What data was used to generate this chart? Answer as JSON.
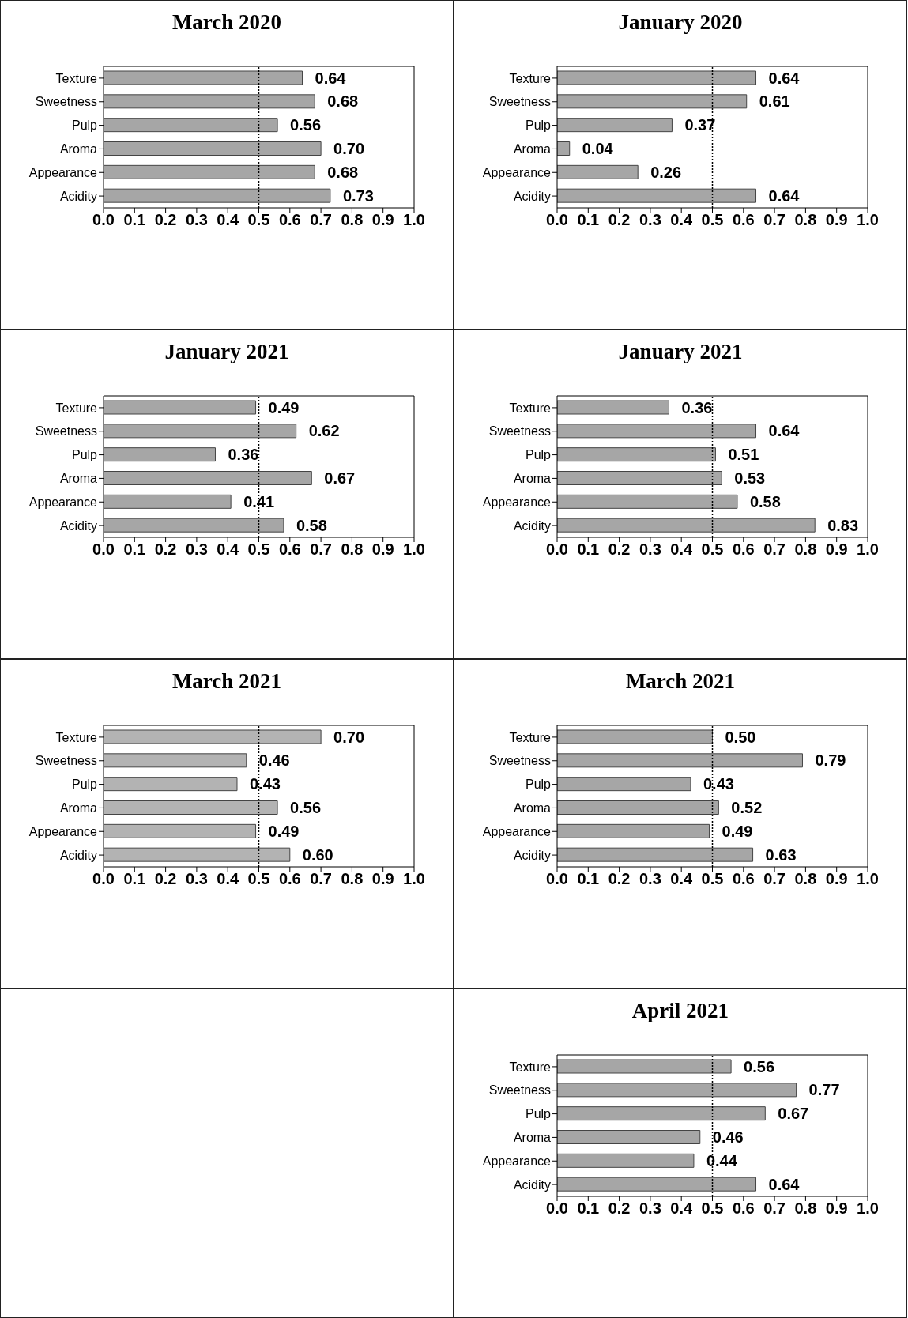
{
  "chart_data": [
    {
      "type": "bar",
      "orientation": "horizontal",
      "title": "March 2020",
      "categories": [
        "Texture",
        "Sweetness",
        "Pulp",
        "Aroma",
        "Appearance",
        "Acidity"
      ],
      "values": [
        0.64,
        0.68,
        0.56,
        0.7,
        0.68,
        0.73
      ],
      "value_labels": [
        "0.64",
        "0.68",
        "0.56",
        "0.70",
        "0.68",
        "0.73"
      ],
      "color": "#a6a6a6",
      "xlim": [
        0,
        1
      ],
      "xticks": [
        {
          "value": 0,
          "label": "0.0"
        },
        {
          "value": 0.1,
          "label": "0.1"
        },
        {
          "value": 0.2,
          "label": "0.2"
        },
        {
          "value": 0.3,
          "label": "0.3"
        },
        {
          "value": 0.4,
          "label": "0.4"
        },
        {
          "value": 0.5,
          "label": "0.5"
        },
        {
          "value": 0.6,
          "label": "0.6"
        },
        {
          "value": 0.7,
          "label": "0.7"
        },
        {
          "value": 0.8,
          "label": "0.8"
        },
        {
          "value": 0.9,
          "label": "0.9"
        },
        {
          "value": 1,
          "label": "1.0"
        }
      ],
      "ref_lines": [
        {
          "axis": "x",
          "value": 0.5,
          "line_style": "dotted"
        }
      ],
      "grid": false,
      "legend": false
    },
    {
      "type": "bar",
      "orientation": "horizontal",
      "title": "January 2020",
      "categories": [
        "Texture",
        "Sweetness",
        "Pulp",
        "Aroma",
        "Appearance",
        "Acidity"
      ],
      "values": [
        0.64,
        0.61,
        0.37,
        0.04,
        0.26,
        0.64
      ],
      "value_labels": [
        "0.64",
        "0.61",
        "0.37",
        "0.04",
        "0.26",
        "0.64"
      ],
      "color": "#a6a6a6",
      "xlim": [
        0,
        1
      ],
      "xticks": [
        {
          "value": 0,
          "label": "0.0"
        },
        {
          "value": 0.1,
          "label": "0.1"
        },
        {
          "value": 0.2,
          "label": "0.2"
        },
        {
          "value": 0.3,
          "label": "0.3"
        },
        {
          "value": 0.4,
          "label": "0.4"
        },
        {
          "value": 0.5,
          "label": "0.5"
        },
        {
          "value": 0.6,
          "label": "0.6"
        },
        {
          "value": 0.7,
          "label": "0.7"
        },
        {
          "value": 0.8,
          "label": "0.8"
        },
        {
          "value": 0.9,
          "label": "0.9"
        },
        {
          "value": 1,
          "label": "1.0"
        }
      ],
      "ref_lines": [
        {
          "axis": "x",
          "value": 0.5,
          "line_style": "dotted"
        }
      ],
      "grid": false,
      "legend": false
    },
    {
      "type": "bar",
      "orientation": "horizontal",
      "title": "January 2021",
      "categories": [
        "Texture",
        "Sweetness",
        "Pulp",
        "Aroma",
        "Appearance",
        "Acidity"
      ],
      "values": [
        0.49,
        0.62,
        0.36,
        0.67,
        0.41,
        0.58
      ],
      "value_labels": [
        "0.49",
        "0.62",
        "0.36",
        "0.67",
        "0.41",
        "0.58"
      ],
      "color": "#a6a6a6",
      "xlim": [
        0,
        1
      ],
      "xticks": [
        {
          "value": 0,
          "label": "0.0"
        },
        {
          "value": 0.1,
          "label": "0.1"
        },
        {
          "value": 0.2,
          "label": "0.2"
        },
        {
          "value": 0.3,
          "label": "0.3"
        },
        {
          "value": 0.4,
          "label": "0.4"
        },
        {
          "value": 0.5,
          "label": "0.5"
        },
        {
          "value": 0.6,
          "label": "0.6"
        },
        {
          "value": 0.7,
          "label": "0.7"
        },
        {
          "value": 0.8,
          "label": "0.8"
        },
        {
          "value": 0.9,
          "label": "0.9"
        },
        {
          "value": 1,
          "label": "1.0"
        }
      ],
      "ref_lines": [
        {
          "axis": "x",
          "value": 0.5,
          "line_style": "dotted"
        }
      ],
      "grid": false,
      "legend": false
    },
    {
      "type": "bar",
      "orientation": "horizontal",
      "title": "January 2021",
      "categories": [
        "Texture",
        "Sweetness",
        "Pulp",
        "Aroma",
        "Appearance",
        "Acidity"
      ],
      "values": [
        0.36,
        0.64,
        0.51,
        0.53,
        0.58,
        0.83
      ],
      "value_labels": [
        "0.36",
        "0.64",
        "0.51",
        "0.53",
        "0.58",
        "0.83"
      ],
      "color": "#a6a6a6",
      "xlim": [
        0,
        1
      ],
      "xticks": [
        {
          "value": 0,
          "label": "0.0"
        },
        {
          "value": 0.1,
          "label": "0.1"
        },
        {
          "value": 0.2,
          "label": "0.2"
        },
        {
          "value": 0.3,
          "label": "0.3"
        },
        {
          "value": 0.4,
          "label": "0.4"
        },
        {
          "value": 0.5,
          "label": "0.5"
        },
        {
          "value": 0.6,
          "label": "0.6"
        },
        {
          "value": 0.7,
          "label": "0.7"
        },
        {
          "value": 0.8,
          "label": "0.8"
        },
        {
          "value": 0.9,
          "label": "0.9"
        },
        {
          "value": 1,
          "label": "1.0"
        }
      ],
      "ref_lines": [
        {
          "axis": "x",
          "value": 0.5,
          "line_style": "dotted"
        }
      ],
      "grid": false,
      "legend": false
    },
    {
      "type": "bar",
      "orientation": "horizontal",
      "title": "March 2021",
      "categories": [
        "Texture",
        "Sweetness",
        "Pulp",
        "Aroma",
        "Appearance",
        "Acidity"
      ],
      "values": [
        0.7,
        0.46,
        0.43,
        0.56,
        0.49,
        0.6
      ],
      "value_labels": [
        "0.70",
        "0.46",
        "0.43",
        "0.56",
        "0.49",
        "0.60"
      ],
      "color": "#b3b3b3",
      "xlim": [
        0,
        1
      ],
      "xticks": [
        {
          "value": 0,
          "label": "0.0"
        },
        {
          "value": 0.1,
          "label": "0.1"
        },
        {
          "value": 0.2,
          "label": "0.2"
        },
        {
          "value": 0.3,
          "label": "0.3"
        },
        {
          "value": 0.4,
          "label": "0.4"
        },
        {
          "value": 0.5,
          "label": "0.5"
        },
        {
          "value": 0.6,
          "label": "0.6"
        },
        {
          "value": 0.7,
          "label": "0.7"
        },
        {
          "value": 0.8,
          "label": "0.8"
        },
        {
          "value": 0.9,
          "label": "0.9"
        },
        {
          "value": 1,
          "label": "1.0"
        }
      ],
      "ref_lines": [
        {
          "axis": "x",
          "value": 0.5,
          "line_style": "dotted"
        }
      ],
      "grid": false,
      "legend": false
    },
    {
      "type": "bar",
      "orientation": "horizontal",
      "title": "March 2021",
      "categories": [
        "Texture",
        "Sweetness",
        "Pulp",
        "Aroma",
        "Appearance",
        "Acidity"
      ],
      "values": [
        0.5,
        0.79,
        0.43,
        0.52,
        0.49,
        0.63
      ],
      "value_labels": [
        "0.50",
        "0.79",
        "0.43",
        "0.52",
        "0.49",
        "0.63"
      ],
      "color": "#a6a6a6",
      "xlim": [
        0,
        1
      ],
      "xticks": [
        {
          "value": 0,
          "label": "0.0"
        },
        {
          "value": 0.1,
          "label": "0.1"
        },
        {
          "value": 0.2,
          "label": "0.2"
        },
        {
          "value": 0.3,
          "label": "0.3"
        },
        {
          "value": 0.4,
          "label": "0.4"
        },
        {
          "value": 0.5,
          "label": "0.5"
        },
        {
          "value": 0.6,
          "label": "0.6"
        },
        {
          "value": 0.7,
          "label": "0.7"
        },
        {
          "value": 0.8,
          "label": "0.8"
        },
        {
          "value": 0.9,
          "label": "0.9"
        },
        {
          "value": 1,
          "label": "1.0"
        }
      ],
      "ref_lines": [
        {
          "axis": "x",
          "value": 0.5,
          "line_style": "dotted"
        }
      ],
      "grid": false,
      "legend": false
    },
    {
      "type": "bar",
      "orientation": "horizontal",
      "title": "April 2021",
      "categories": [
        "Texture",
        "Sweetness",
        "Pulp",
        "Aroma",
        "Appearance",
        "Acidity"
      ],
      "values": [
        0.56,
        0.77,
        0.67,
        0.46,
        0.44,
        0.64
      ],
      "value_labels": [
        "0.56",
        "0.77",
        "0.67",
        "0.46",
        "0.44",
        "0.64"
      ],
      "color": "#a6a6a6",
      "xlim": [
        0,
        1
      ],
      "xticks": [
        {
          "value": 0,
          "label": "0.0"
        },
        {
          "value": 0.1,
          "label": "0.1"
        },
        {
          "value": 0.2,
          "label": "0.2"
        },
        {
          "value": 0.3,
          "label": "0.3"
        },
        {
          "value": 0.4,
          "label": "0.4"
        },
        {
          "value": 0.5,
          "label": "0.5"
        },
        {
          "value": 0.6,
          "label": "0.6"
        },
        {
          "value": 0.7,
          "label": "0.7"
        },
        {
          "value": 0.8,
          "label": "0.8"
        },
        {
          "value": 0.9,
          "label": "0.9"
        },
        {
          "value": 1,
          "label": "1.0"
        }
      ],
      "ref_lines": [
        {
          "axis": "x",
          "value": 0.5,
          "line_style": "dotted"
        }
      ],
      "grid": false,
      "legend": false
    }
  ]
}
